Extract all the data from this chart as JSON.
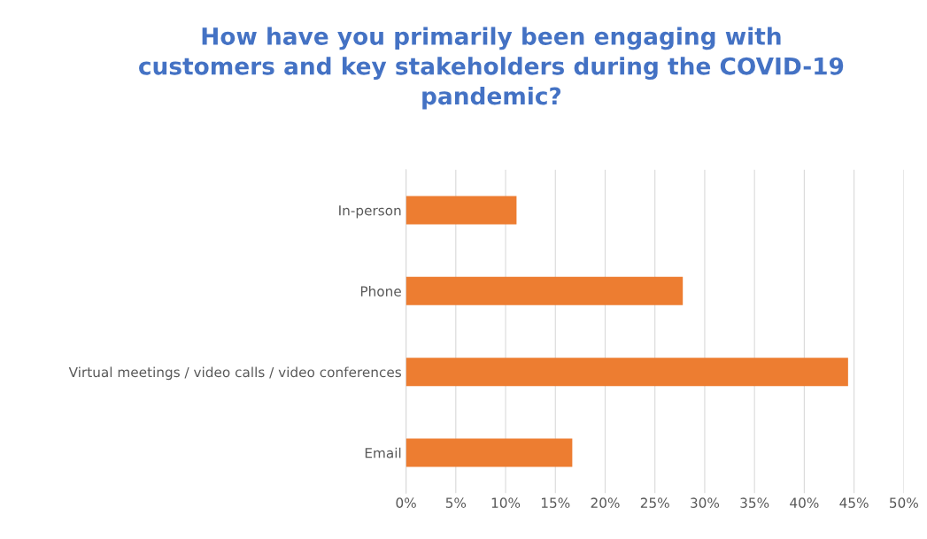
{
  "chart_data": {
    "type": "bar",
    "orientation": "horizontal",
    "title": "How have you primarily been engaging with\ncustomers and key stakeholders during the COVID-19\npandemic?",
    "categories": [
      "In-person",
      "Phone",
      "Virtual meetings / video calls / video conferences",
      "Email"
    ],
    "values": [
      11.1,
      27.8,
      44.4,
      16.7
    ],
    "color": "#ed7d31",
    "xlim": [
      0,
      50
    ],
    "xticks": [
      {
        "value": 0,
        "label": "0%"
      },
      {
        "value": 5,
        "label": "5%"
      },
      {
        "value": 10,
        "label": "10%"
      },
      {
        "value": 15,
        "label": "15%"
      },
      {
        "value": 20,
        "label": "20%"
      },
      {
        "value": 25,
        "label": "25%"
      },
      {
        "value": 30,
        "label": "30%"
      },
      {
        "value": 35,
        "label": "35%"
      },
      {
        "value": 40,
        "label": "40%"
      },
      {
        "value": 45,
        "label": "45%"
      },
      {
        "value": 50,
        "label": "50%"
      }
    ],
    "grid": "x"
  }
}
